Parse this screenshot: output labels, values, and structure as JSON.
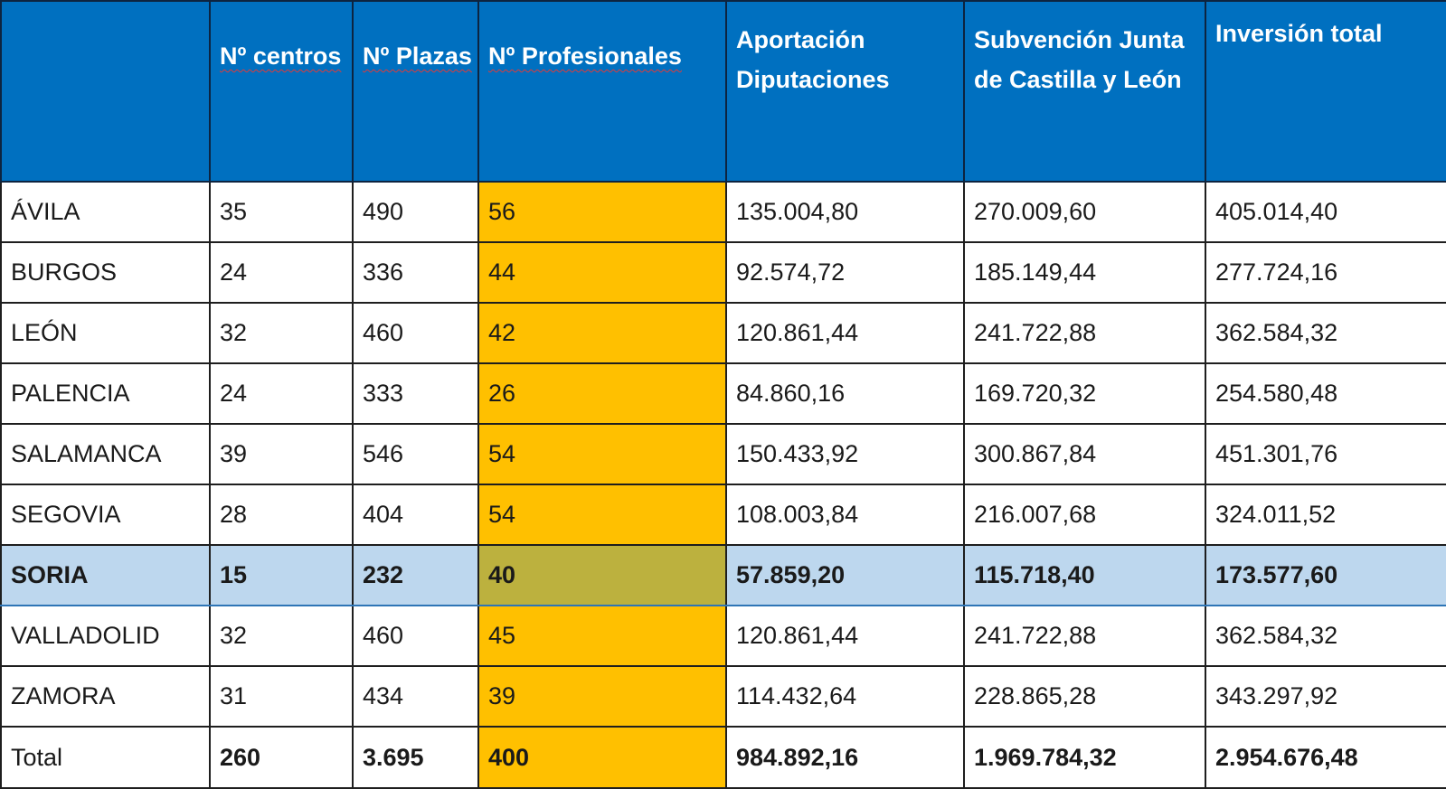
{
  "table": {
    "headers": {
      "province": "",
      "centros": "Nº centros",
      "plazas": "Nº Plazas",
      "profesionales": "Nº Profesionales",
      "aportacion": "Aportación Diputaciones",
      "subvencion": "Subvención Junta de Castilla y León",
      "inversion": "Inversión total"
    },
    "rows": [
      {
        "name": "ÁVILA",
        "centros": "35",
        "plazas": "490",
        "profesionales": "56",
        "aportacion": "135.004,80",
        "subvencion": "270.009,60",
        "inversion": "405.014,40"
      },
      {
        "name": "BURGOS",
        "centros": "24",
        "plazas": "336",
        "profesionales": "44",
        "aportacion": "92.574,72",
        "subvencion": "185.149,44",
        "inversion": "277.724,16"
      },
      {
        "name": "LEÓN",
        "centros": "32",
        "plazas": "460",
        "profesionales": "42",
        "aportacion": "120.861,44",
        "subvencion": "241.722,88",
        "inversion": "362.584,32"
      },
      {
        "name": "PALENCIA",
        "centros": "24",
        "plazas": "333",
        "profesionales": "26",
        "aportacion": "84.860,16",
        "subvencion": "169.720,32",
        "inversion": "254.580,48"
      },
      {
        "name": "SALAMANCA",
        "centros": "39",
        "plazas": "546",
        "profesionales": "54",
        "aportacion": "150.433,92",
        "subvencion": "300.867,84",
        "inversion": "451.301,76"
      },
      {
        "name": "SEGOVIA",
        "centros": "28",
        "plazas": "404",
        "profesionales": "54",
        "aportacion": "108.003,84",
        "subvencion": "216.007,68",
        "inversion": "324.011,52"
      },
      {
        "name": "SORIA",
        "centros": "15",
        "plazas": "232",
        "profesionales": "40",
        "aportacion": "57.859,20",
        "subvencion": "115.718,40",
        "inversion": "173.577,60"
      },
      {
        "name": "VALLADOLID",
        "centros": "32",
        "plazas": "460",
        "profesionales": "45",
        "aportacion": "120.861,44",
        "subvencion": "241.722,88",
        "inversion": "362.584,32"
      },
      {
        "name": "ZAMORA",
        "centros": "31",
        "plazas": "434",
        "profesionales": "39",
        "aportacion": "114.432,64",
        "subvencion": "228.865,28",
        "inversion": "343.297,92"
      }
    ],
    "total": {
      "name": "Total",
      "centros": "260",
      "plazas": "3.695",
      "profesionales": "400",
      "aportacion": "984.892,16",
      "subvencion": "1.969.784,32",
      "inversion": "2.954.676,48"
    }
  },
  "colors": {
    "header_bg": "#0070c0",
    "profesionales_highlight": "#ffc000",
    "soria_row_highlight": "#bdd7ee"
  }
}
